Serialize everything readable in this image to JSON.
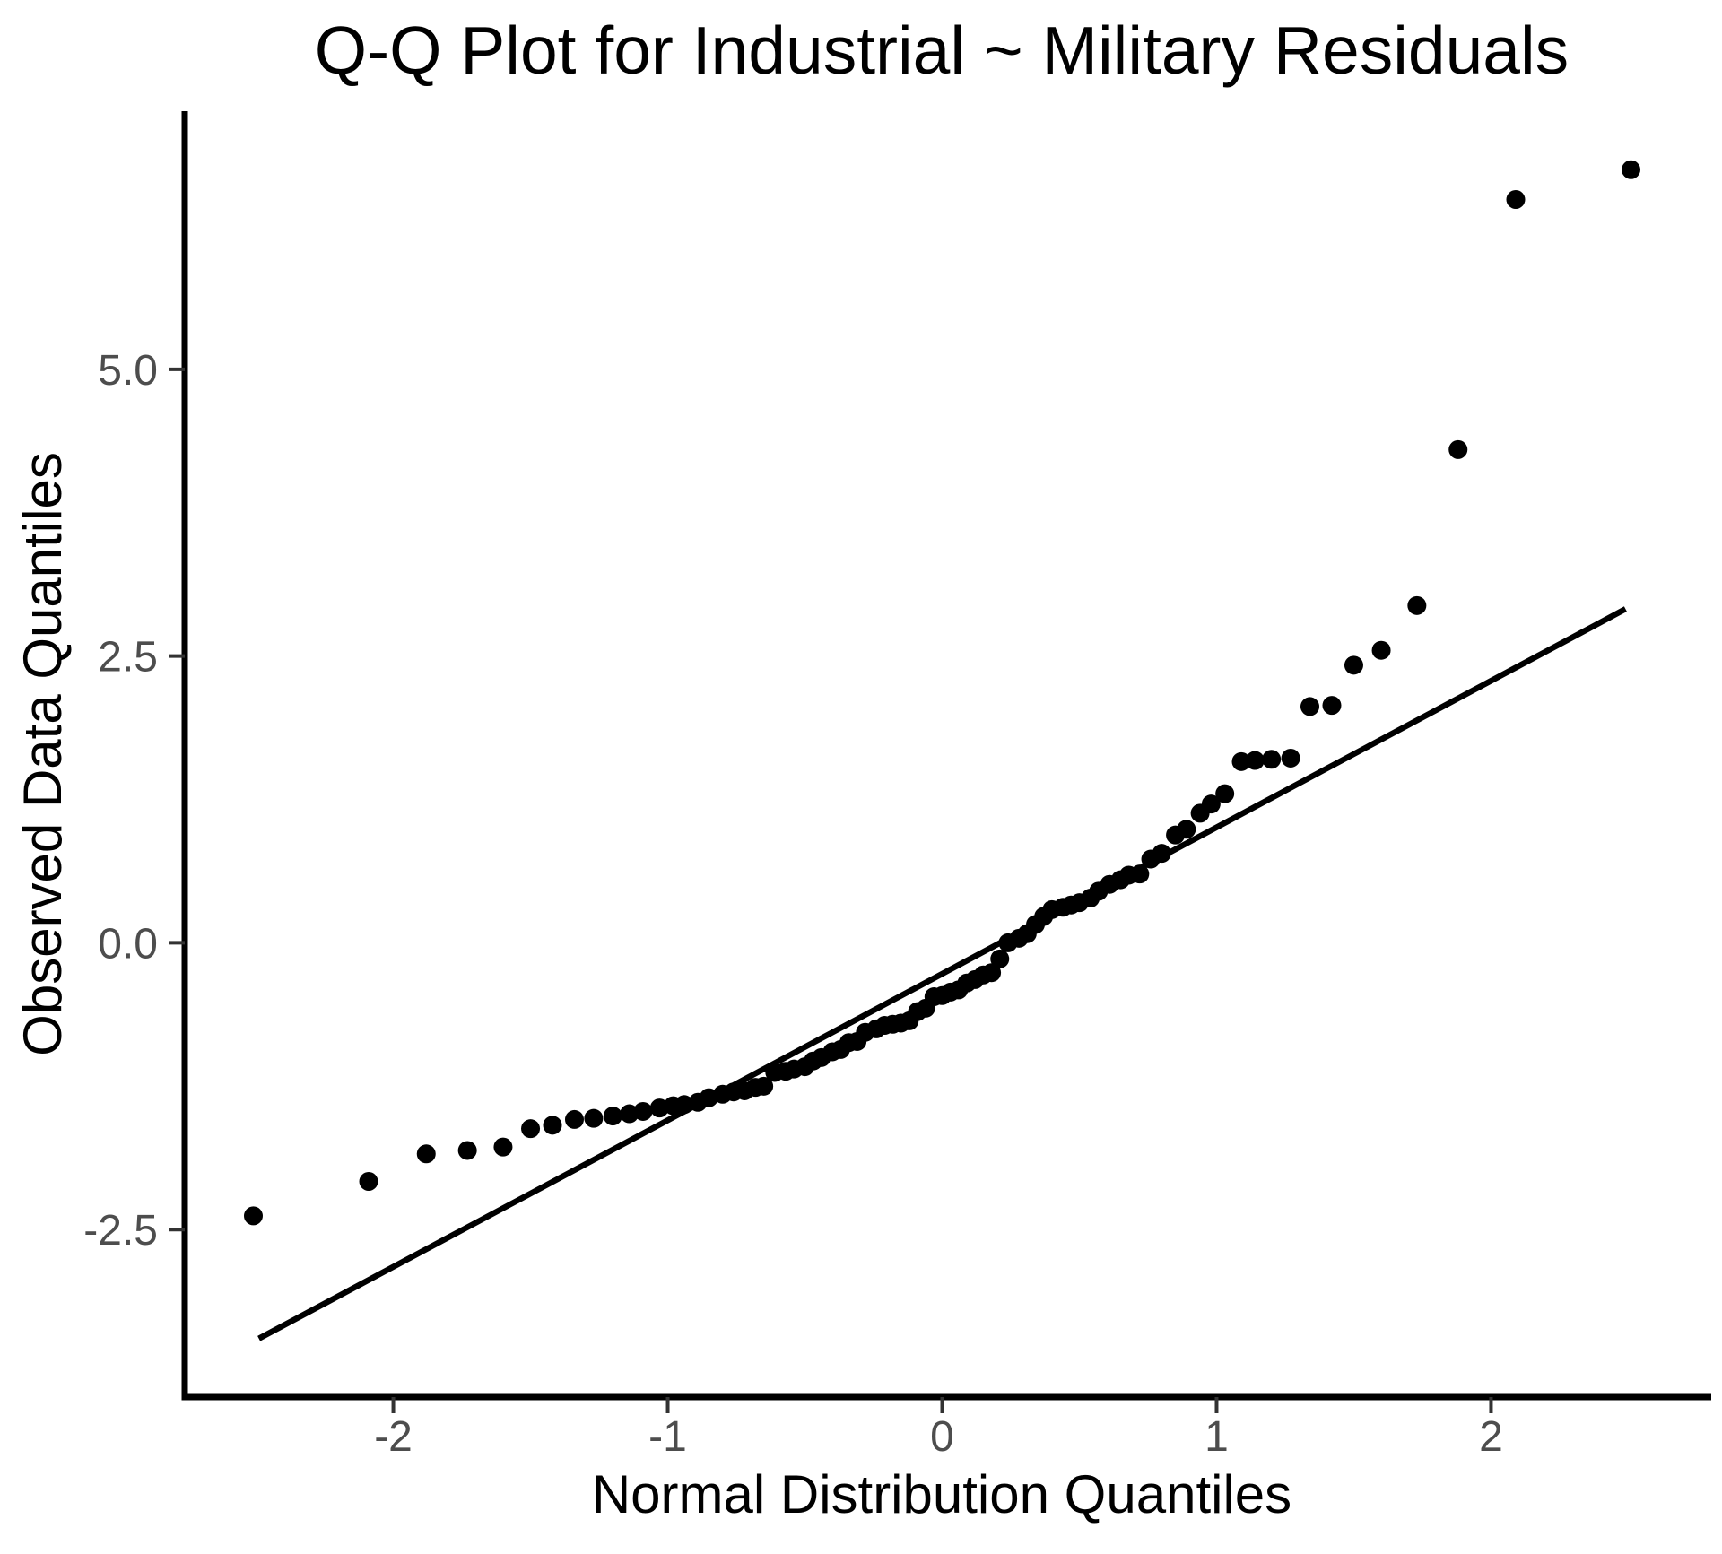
{
  "chart_data": {
    "type": "scatter",
    "subtype": "qq-plot",
    "title": "Q-Q Plot for Industrial ~ Military Residuals",
    "xlabel": "Normal Distribution Quantiles",
    "ylabel": "Observed Data Quantiles",
    "x_ticks": [
      {
        "value": -2,
        "label": "-2"
      },
      {
        "value": -1,
        "label": "-1"
      },
      {
        "value": 0,
        "label": "0"
      },
      {
        "value": 1,
        "label": "1"
      },
      {
        "value": 2,
        "label": "2"
      }
    ],
    "y_ticks": [
      {
        "value": 5.0,
        "label": "5.0"
      },
      {
        "value": 2.5,
        "label": "2.5"
      },
      {
        "value": 0.0,
        "label": "0.0"
      },
      {
        "value": -2.5,
        "label": "-2.5"
      }
    ],
    "xlim": [
      -2.76,
      2.76
    ],
    "ylim": [
      -3.96,
      7.25
    ],
    "grid": false,
    "legend": "none",
    "n_points": 83,
    "points": {
      "x": [
        -2.51,
        -2.09,
        -1.88,
        -1.73,
        -1.6,
        -1.5,
        -1.42,
        -1.34,
        -1.27,
        -1.2,
        -1.14,
        -1.09,
        -1.03,
        -0.98,
        -0.94,
        -0.89,
        -0.85,
        -0.8,
        -0.76,
        -0.72,
        -0.68,
        -0.65,
        -0.61,
        -0.57,
        -0.54,
        -0.5,
        -0.47,
        -0.44,
        -0.4,
        -0.37,
        -0.34,
        -0.31,
        -0.28,
        -0.24,
        -0.21,
        -0.18,
        -0.15,
        -0.12,
        -0.09,
        -0.06,
        -0.03,
        0.0,
        0.03,
        0.06,
        0.09,
        0.12,
        0.15,
        0.18,
        0.21,
        0.24,
        0.28,
        0.31,
        0.34,
        0.37,
        0.4,
        0.44,
        0.47,
        0.5,
        0.54,
        0.57,
        0.61,
        0.65,
        0.68,
        0.72,
        0.76,
        0.8,
        0.85,
        0.89,
        0.94,
        0.98,
        1.03,
        1.09,
        1.14,
        1.2,
        1.27,
        1.34,
        1.42,
        1.5,
        1.6,
        1.73,
        1.88,
        2.09,
        2.51
      ],
      "y": [
        -2.38,
        -2.08,
        -1.84,
        -1.81,
        -1.78,
        -1.62,
        -1.59,
        -1.54,
        -1.53,
        -1.51,
        -1.49,
        -1.47,
        -1.44,
        -1.42,
        -1.41,
        -1.39,
        -1.35,
        -1.32,
        -1.3,
        -1.29,
        -1.26,
        -1.25,
        -1.13,
        -1.12,
        -1.1,
        -1.08,
        -1.03,
        -1.0,
        -0.95,
        -0.93,
        -0.87,
        -0.86,
        -0.78,
        -0.75,
        -0.72,
        -0.71,
        -0.7,
        -0.68,
        -0.6,
        -0.57,
        -0.47,
        -0.46,
        -0.43,
        -0.41,
        -0.35,
        -0.32,
        -0.28,
        -0.26,
        -0.14,
        0.0,
        0.04,
        0.08,
        0.16,
        0.23,
        0.29,
        0.31,
        0.33,
        0.35,
        0.39,
        0.45,
        0.51,
        0.55,
        0.59,
        0.6,
        0.73,
        0.78,
        0.94,
        0.99,
        1.13,
        1.21,
        1.3,
        1.58,
        1.59,
        1.6,
        1.61,
        2.06,
        2.07,
        2.42,
        2.55,
        2.94,
        4.3,
        6.48,
        6.74
      ]
    },
    "reference_line": {
      "x1": -2.49,
      "y1": -3.45,
      "x2": 2.49,
      "y2": 2.91
    },
    "styles": {
      "background": "#ffffff",
      "point_color": "#000000",
      "reference_line_color": "#000000",
      "axis_line_color": "#000000",
      "tick_mark_color": "#333333",
      "tick_label_color": "#4d4d4d",
      "title_color": "#000000"
    }
  }
}
